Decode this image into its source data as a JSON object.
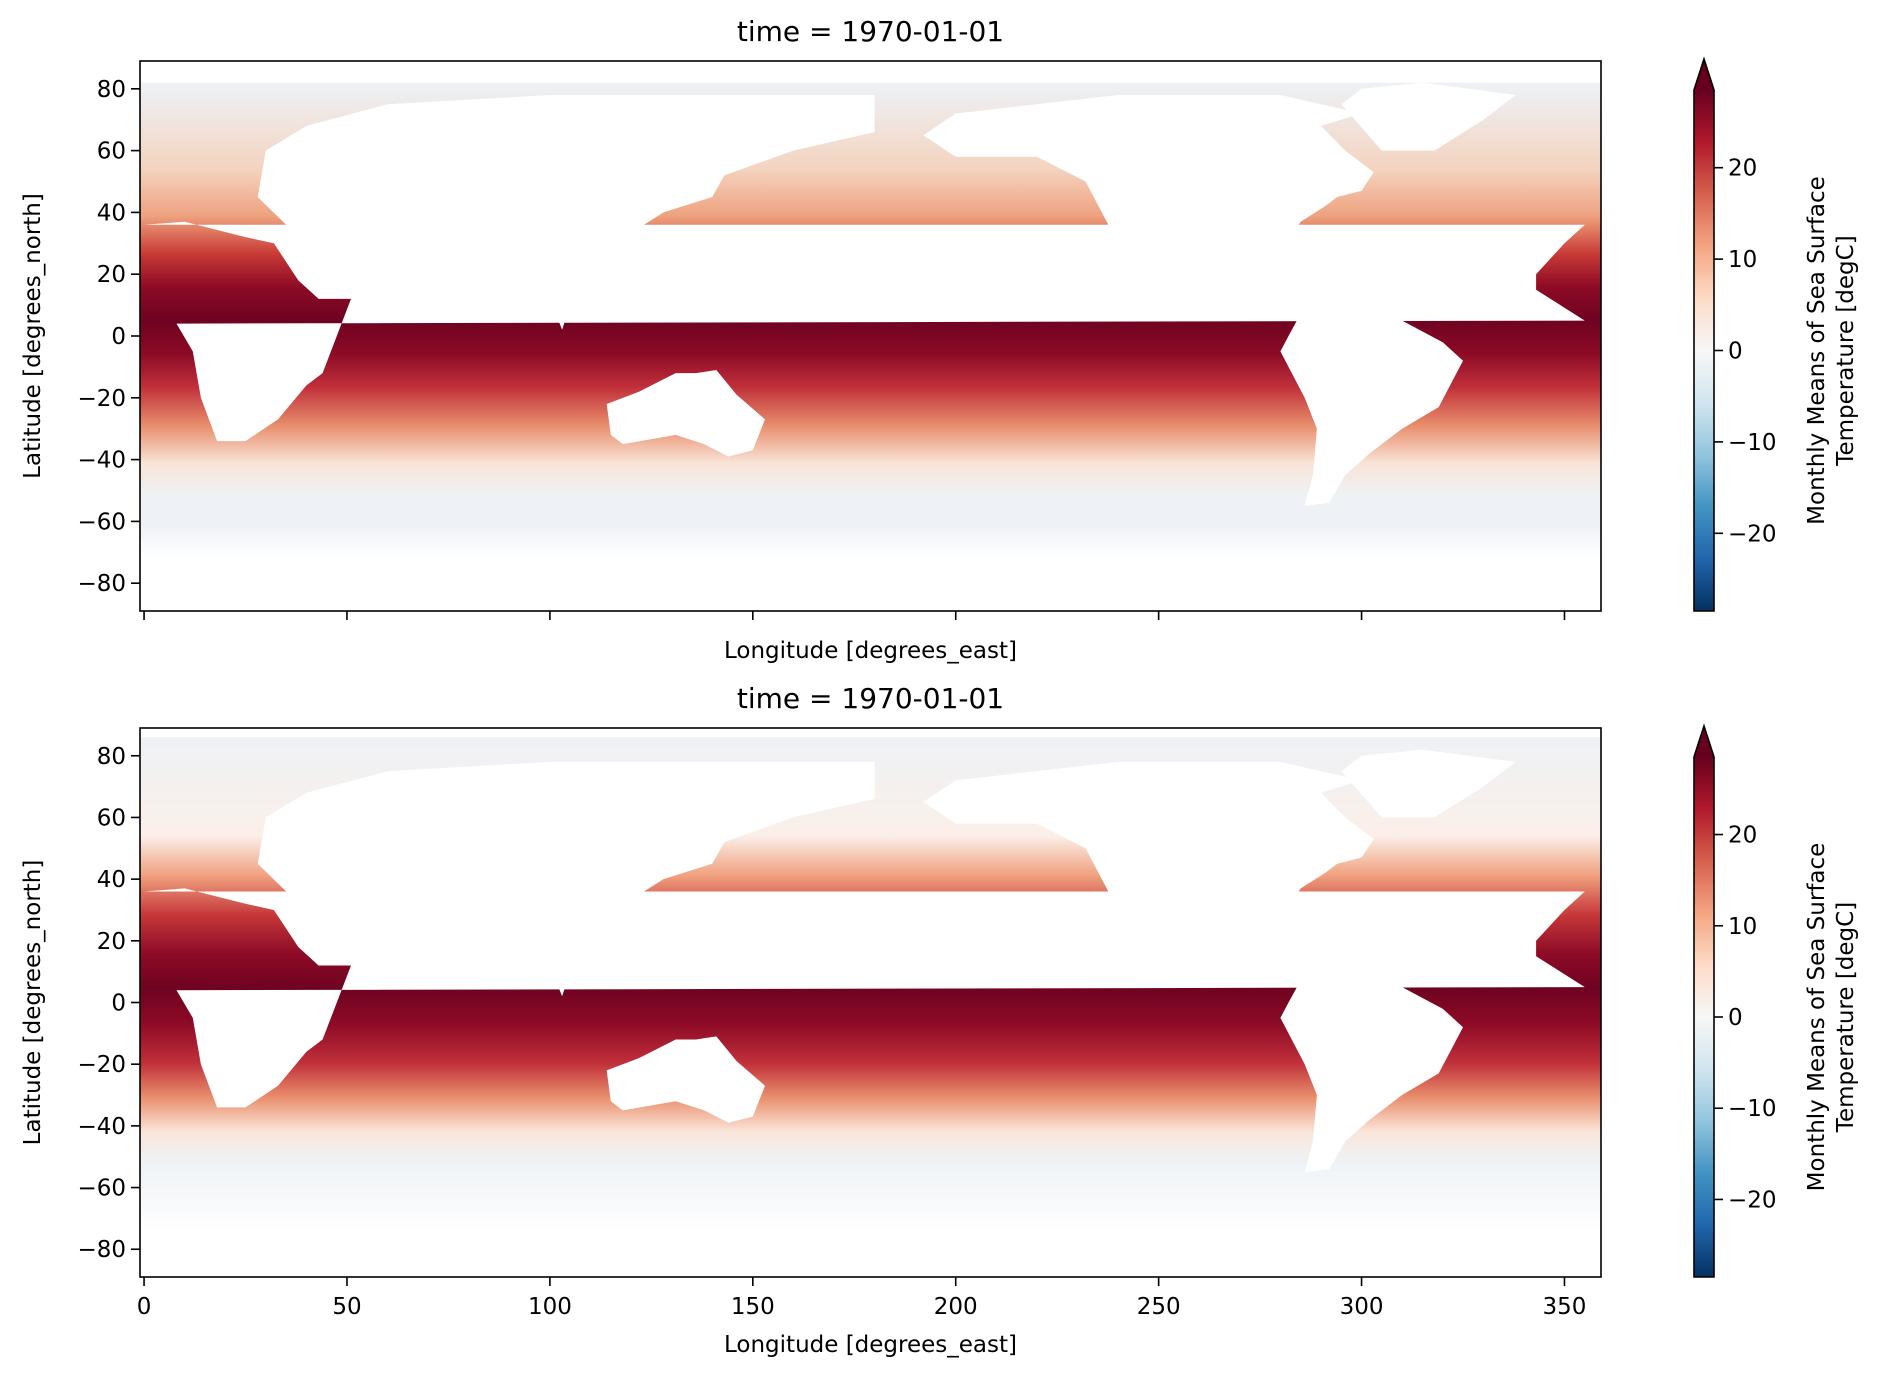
{
  "chart_data": [
    {
      "type": "heatmap",
      "title": "time = 1970-01-01",
      "xlabel": "Longitude [degrees_east]",
      "ylabel": "Latitude [degrees_north]",
      "xlim": [
        -1,
        359
      ],
      "ylim": [
        -89,
        89
      ],
      "xticks": [
        0,
        50,
        100,
        150,
        200,
        250,
        300,
        350
      ],
      "xticklabels_shown": false,
      "yticks": [
        -80,
        -60,
        -40,
        -20,
        0,
        20,
        40,
        60,
        80
      ],
      "yticklabels": [
        "−80",
        "−60",
        "−40",
        "−20",
        "0",
        "20",
        "40",
        "60",
        "80"
      ],
      "variable": "Monthly Means of Sea Surface Temperature",
      "colorbar": {
        "label_lines": [
          "Monthly Means of Sea Surface",
          "Temperature [degC]"
        ],
        "colormap": "RdBu_r",
        "vmin": -28.5,
        "vmax": 28.5,
        "extend": "max",
        "ticks": [
          -20,
          -10,
          0,
          10,
          20
        ],
        "ticklabels": [
          "−20",
          "−10",
          "0",
          "10",
          "20"
        ]
      },
      "grid": false
    },
    {
      "type": "heatmap",
      "title": "time = 1970-01-01",
      "xlabel": "Longitude [degrees_east]",
      "ylabel": "Latitude [degrees_north]",
      "xlim": [
        -1,
        359
      ],
      "ylim": [
        -89,
        89
      ],
      "xticks": [
        0,
        50,
        100,
        150,
        200,
        250,
        300,
        350
      ],
      "xticklabels": [
        "0",
        "50",
        "100",
        "150",
        "200",
        "250",
        "300",
        "350"
      ],
      "yticks": [
        -80,
        -60,
        -40,
        -20,
        0,
        20,
        40,
        60,
        80
      ],
      "yticklabels": [
        "−80",
        "−60",
        "−40",
        "−20",
        "0",
        "20",
        "40",
        "60",
        "80"
      ],
      "variable": "Monthly Means of Sea Surface Temperature",
      "colorbar": {
        "label_lines": [
          "Monthly Means of Sea Surface",
          "Temperature [degC]"
        ],
        "colormap": "RdBu_r",
        "vmin": -28.5,
        "vmax": 28.5,
        "extend": "max",
        "ticks": [
          -20,
          -10,
          0,
          10,
          20
        ],
        "ticklabels": [
          "−20",
          "−10",
          "0",
          "10",
          "20"
        ]
      },
      "grid": false
    }
  ]
}
